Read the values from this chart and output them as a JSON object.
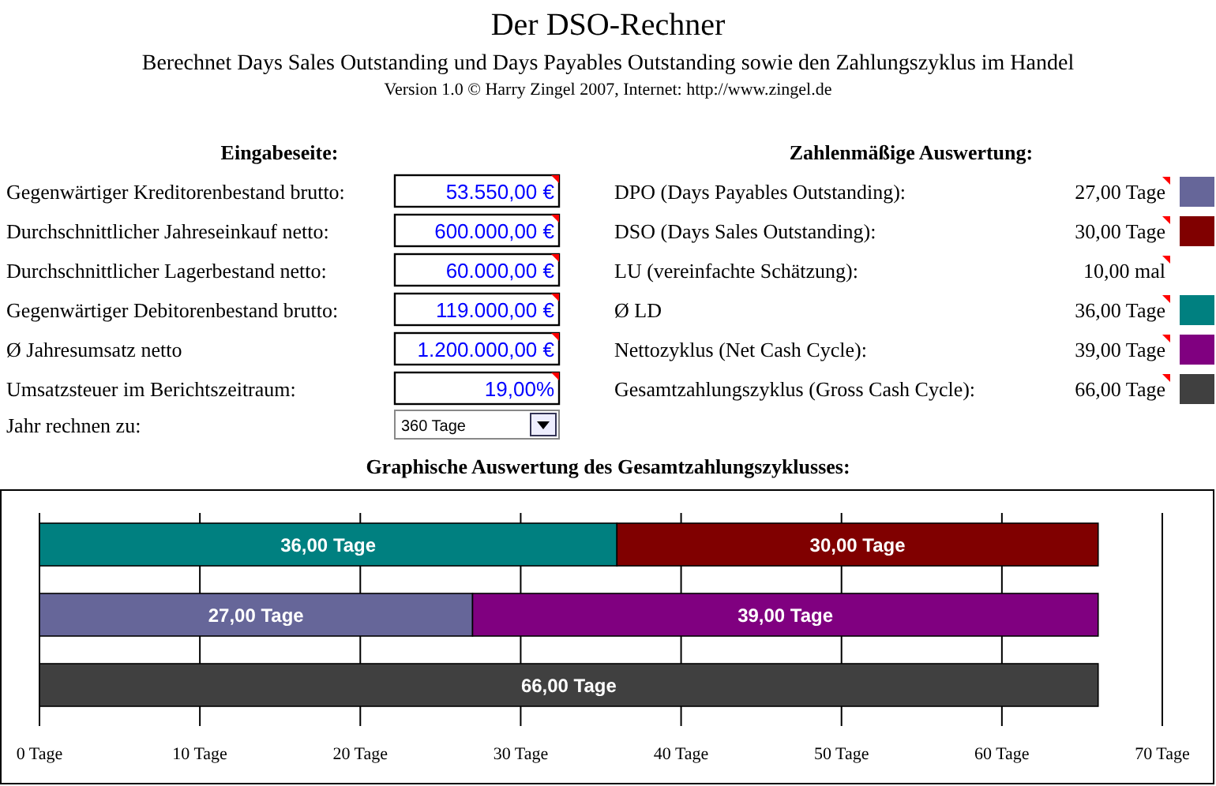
{
  "chart_data": {
    "type": "bar",
    "orientation": "horizontal",
    "stacked": true,
    "title": "Der DSO-Rechner",
    "subtitle": "Berechnet Days Sales Outstanding und Days Payables Outstanding sowie den Zahlungszyklus im Handel",
    "categories": [
      null,
      null,
      null
    ],
    "series": [
      {
        "color": "#008080",
        "values": [
          36,
          null,
          null
        ],
        "value_labels": [
          "36,00 Tage",
          null,
          null
        ]
      },
      {
        "color": "#800000",
        "values": [
          30,
          null,
          null
        ],
        "value_labels": [
          "30,00 Tage",
          null,
          null
        ]
      },
      {
        "color": "#666699",
        "values": [
          null,
          27,
          null
        ],
        "value_labels": [
          null,
          "27,00 Tage",
          null
        ]
      },
      {
        "color": "#800080",
        "values": [
          null,
          39,
          null
        ],
        "value_labels": [
          null,
          "39,00 Tage",
          null
        ]
      },
      {
        "color": "#404040",
        "values": [
          null,
          null,
          66
        ],
        "value_labels": [
          null,
          null,
          "66,00 Tage"
        ]
      }
    ],
    "xlim": [
      0,
      70
    ],
    "xticks": [
      {
        "value": 0,
        "label": "0 Tage"
      },
      {
        "value": 10,
        "label": "10 Tage"
      },
      {
        "value": 20,
        "label": "20 Tage"
      },
      {
        "value": 30,
        "label": "30 Tage"
      },
      {
        "value": 40,
        "label": "40 Tage"
      },
      {
        "value": 50,
        "label": "50 Tage"
      },
      {
        "value": 60,
        "label": "60 Tage"
      },
      {
        "value": 70,
        "label": "70 Tage"
      }
    ],
    "grid": "x",
    "annotations": [
      "Version 1.0 © Harry Zingel 2007, Internet: http://www.zingel.de",
      "Eingabeseite:",
      "Gegenwärtiger Kreditorenbestand brutto:",
      "53.550,00 €",
      "Durchschnittlicher Jahreseinkauf netto:",
      "600.000,00 €",
      "Durchschnittlicher Lagerbestand netto:",
      "60.000,00 €",
      "Gegenwärtiger Debitorenbestand brutto:",
      "119.000,00 €",
      "Ø Jahresumsatz netto",
      "1.200.000,00 €",
      "Umsatzsteuer im Berichtszeitraum:",
      "19,00%",
      "Jahr rechnen zu:",
      "360 Tage",
      "Zahlenmäßige Auswertung:",
      "DPO (Days Payables Outstanding):",
      "27,00 Tage",
      "DSO (Days Sales Outstanding):",
      "30,00 Tage",
      "LU (vereinfachte Schätzung):",
      "10,00 mal",
      "Ø LD",
      "36,00 Tage",
      "Nettozyklus (Net Cash Cycle):",
      "39,00 Tage",
      "Gesamtzahlungszyklus (Gross Cash Cycle):",
      "66,00 Tage",
      "Graphische Auswertung des Gesamtzahlungszyklusses:"
    ]
  }
}
